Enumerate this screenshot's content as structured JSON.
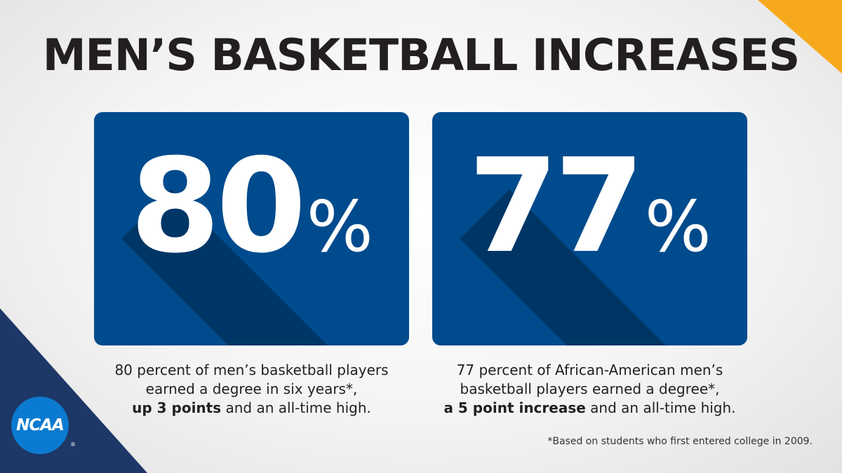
{
  "title": "MEN’S BASKETBALL INCREASES",
  "colors": {
    "accent_orange": "#f6a91c",
    "navy": "#1d3767",
    "card_blue": "#004b8d",
    "shadow_blue": "#003666",
    "logo_blue": "#0a7bd0"
  },
  "stats": [
    {
      "value": "80",
      "unit": "%",
      "caption_line1": "80 percent of men’s basketball players",
      "caption_line2": "earned a degree in six years*,",
      "caption_bold": "up 3 points",
      "caption_tail": " and an all-time high."
    },
    {
      "value": "77",
      "unit": "%",
      "caption_line1": "77 percent of African-American men’s",
      "caption_line2": "basketball players earned a degree*,",
      "caption_bold": "a 5 point increase",
      "caption_tail": " and an all-time high."
    }
  ],
  "footnote": "*Based on students who first entered college in 2009.",
  "logo": {
    "text": "NCAA",
    "reg": "®",
    "icon": "ncaa-logo"
  }
}
